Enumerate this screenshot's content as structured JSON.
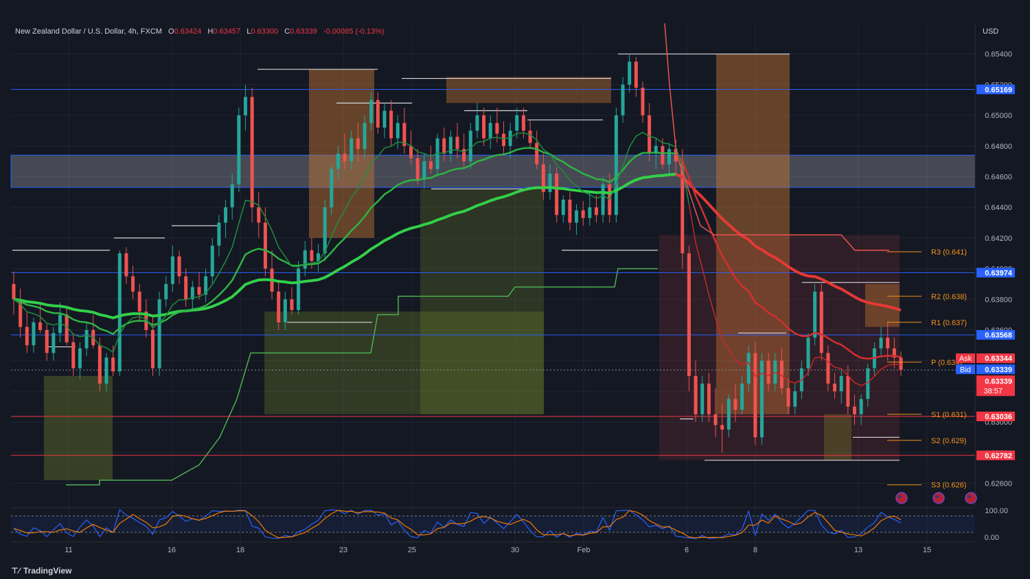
{
  "header": {
    "symbol": "New Zealand Dollar / U.S. Dollar, 4h, FXCM",
    "open_label": "O",
    "open": "0.63424",
    "high_label": "H",
    "high": "0.63457",
    "low_label": "L",
    "low": "0.63300",
    "close_label": "C",
    "close": "0.63339",
    "change": "-0.00085 (-0.13%)"
  },
  "currency": "USD",
  "branding": "TradingView",
  "colors": {
    "up": "#26a69a",
    "down": "#ef5350",
    "bg": "#141823",
    "hline_blue": "#2962ff",
    "hline_red": "#f23645",
    "pivot": "#f7931a"
  },
  "chart_data": {
    "type": "candlestick",
    "y_axis": {
      "ylim": [
        0.6245,
        0.656
      ],
      "ticks": [
        "0.62600",
        "0.62800",
        "0.63000",
        "0.63200",
        "0.63400",
        "0.63600",
        "0.63800",
        "0.64000",
        "0.64200",
        "0.64400",
        "0.64600",
        "0.64800",
        "0.65000",
        "0.65200",
        "0.65400"
      ]
    },
    "x_axis": {
      "tick_labels": [
        "11",
        "16",
        "18",
        "23",
        "25",
        "30",
        "Feb",
        "6",
        "8",
        "13",
        "15"
      ]
    },
    "price_tags": [
      {
        "value": "0.65169",
        "color": "#2962ff",
        "y": 0.65169
      },
      {
        "value": "0.63974",
        "color": "#2962ff",
        "y": 0.63974
      },
      {
        "value": "0.63568",
        "color": "#2962ff",
        "y": 0.63568
      },
      {
        "value": "0.63036",
        "color": "#f23645",
        "y": 0.63036
      },
      {
        "value": "0.62782",
        "color": "#f23645",
        "y": 0.62782
      }
    ],
    "ask": {
      "label": "Ask",
      "value": "0.63344",
      "y": 0.63344
    },
    "bid": {
      "label": "Bid",
      "value": "0.63339",
      "y": 0.63339
    },
    "last": {
      "value": "0.63339",
      "countdown": "38:57"
    },
    "pivots": [
      {
        "label": "R3 (0.641)",
        "y": 0.6411
      },
      {
        "label": "R2 (0.638)",
        "y": 0.6382
      },
      {
        "label": "R1 (0.637)",
        "y": 0.6365
      },
      {
        "label": "P (0.634)",
        "y": 0.6339
      },
      {
        "label": "S1 (0.631)",
        "y": 0.6305
      },
      {
        "label": "S2 (0.629)",
        "y": 0.6288
      },
      {
        "label": "S3 (0.626)",
        "y": 0.6259
      }
    ],
    "zone": {
      "low": 0.6453,
      "high": 0.6474
    },
    "candles": [
      [
        0.639,
        0.6398,
        0.637,
        0.638
      ],
      [
        0.638,
        0.6387,
        0.6355,
        0.6362
      ],
      [
        0.6362,
        0.6372,
        0.6345,
        0.635
      ],
      [
        0.635,
        0.6368,
        0.6345,
        0.6365
      ],
      [
        0.6365,
        0.6377,
        0.6358,
        0.636
      ],
      [
        0.636,
        0.6364,
        0.634,
        0.6345
      ],
      [
        0.6345,
        0.6362,
        0.634,
        0.6358
      ],
      [
        0.6358,
        0.6378,
        0.6352,
        0.637
      ],
      [
        0.637,
        0.6375,
        0.635,
        0.6352
      ],
      [
        0.6352,
        0.6358,
        0.633,
        0.6335
      ],
      [
        0.6335,
        0.6352,
        0.6328,
        0.6348
      ],
      [
        0.6348,
        0.6365,
        0.6343,
        0.636
      ],
      [
        0.636,
        0.637,
        0.6348,
        0.635
      ],
      [
        0.635,
        0.6355,
        0.632,
        0.6325
      ],
      [
        0.6325,
        0.6345,
        0.632,
        0.6342
      ],
      [
        0.6342,
        0.635,
        0.633,
        0.6333
      ],
      [
        0.6333,
        0.6412,
        0.633,
        0.641
      ],
      [
        0.641,
        0.6414,
        0.639,
        0.6395
      ],
      [
        0.6395,
        0.6402,
        0.638,
        0.6385
      ],
      [
        0.6385,
        0.639,
        0.6365,
        0.6372
      ],
      [
        0.6372,
        0.638,
        0.6355,
        0.636
      ],
      [
        0.636,
        0.637,
        0.633,
        0.6335
      ],
      [
        0.6335,
        0.6385,
        0.633,
        0.638
      ],
      [
        0.638,
        0.6395,
        0.6375,
        0.639
      ],
      [
        0.639,
        0.6415,
        0.6385,
        0.6408
      ],
      [
        0.6408,
        0.6412,
        0.639,
        0.6395
      ],
      [
        0.6395,
        0.64,
        0.6375,
        0.638
      ],
      [
        0.638,
        0.6392,
        0.6372,
        0.6388
      ],
      [
        0.6388,
        0.6398,
        0.638,
        0.6383
      ],
      [
        0.6383,
        0.64,
        0.6378,
        0.6395
      ],
      [
        0.6395,
        0.642,
        0.639,
        0.6415
      ],
      [
        0.6415,
        0.6435,
        0.6408,
        0.643
      ],
      [
        0.643,
        0.6445,
        0.642,
        0.644
      ],
      [
        0.644,
        0.6462,
        0.6432,
        0.6455
      ],
      [
        0.6455,
        0.6505,
        0.645,
        0.65
      ],
      [
        0.65,
        0.652,
        0.649,
        0.6512
      ],
      [
        0.6512,
        0.6518,
        0.643,
        0.644
      ],
      [
        0.644,
        0.645,
        0.642,
        0.643
      ],
      [
        0.643,
        0.644,
        0.6395,
        0.64
      ],
      [
        0.64,
        0.6412,
        0.638,
        0.6385
      ],
      [
        0.6385,
        0.6392,
        0.636,
        0.6365
      ],
      [
        0.6365,
        0.6385,
        0.636,
        0.638
      ],
      [
        0.638,
        0.6388,
        0.637,
        0.6373
      ],
      [
        0.6373,
        0.6405,
        0.637,
        0.64
      ],
      [
        0.64,
        0.6418,
        0.6395,
        0.6412
      ],
      [
        0.6412,
        0.642,
        0.64,
        0.6405
      ],
      [
        0.6405,
        0.6416,
        0.6398,
        0.641
      ],
      [
        0.641,
        0.6445,
        0.6405,
        0.644
      ],
      [
        0.644,
        0.6468,
        0.6435,
        0.6465
      ],
      [
        0.6465,
        0.648,
        0.6458,
        0.6475
      ],
      [
        0.6475,
        0.6488,
        0.6465,
        0.647
      ],
      [
        0.647,
        0.649,
        0.6465,
        0.6485
      ],
      [
        0.6485,
        0.6495,
        0.647,
        0.6478
      ],
      [
        0.6478,
        0.65,
        0.6472,
        0.6495
      ],
      [
        0.6495,
        0.6515,
        0.649,
        0.651
      ],
      [
        0.651,
        0.6515,
        0.6488,
        0.6492
      ],
      [
        0.6492,
        0.6508,
        0.6485,
        0.6503
      ],
      [
        0.6503,
        0.651,
        0.648,
        0.6485
      ],
      [
        0.6485,
        0.65,
        0.6478,
        0.6495
      ],
      [
        0.6495,
        0.6505,
        0.6475,
        0.648
      ],
      [
        0.648,
        0.649,
        0.6468,
        0.6472
      ],
      [
        0.6472,
        0.6478,
        0.6455,
        0.6458
      ],
      [
        0.6458,
        0.6475,
        0.6452,
        0.647
      ],
      [
        0.647,
        0.648,
        0.6462,
        0.6465
      ],
      [
        0.6465,
        0.6488,
        0.646,
        0.6485
      ],
      [
        0.6485,
        0.6492,
        0.647,
        0.6475
      ],
      [
        0.6475,
        0.649,
        0.647,
        0.6486
      ],
      [
        0.6486,
        0.6495,
        0.6472,
        0.6478
      ],
      [
        0.6478,
        0.6488,
        0.6466,
        0.647
      ],
      [
        0.647,
        0.6495,
        0.6465,
        0.649
      ],
      [
        0.649,
        0.6508,
        0.6485,
        0.65
      ],
      [
        0.65,
        0.6505,
        0.648,
        0.6485
      ],
      [
        0.6485,
        0.65,
        0.6478,
        0.6495
      ],
      [
        0.6495,
        0.6505,
        0.6482,
        0.6488
      ],
      [
        0.6488,
        0.6496,
        0.6475,
        0.648
      ],
      [
        0.648,
        0.6495,
        0.6472,
        0.649
      ],
      [
        0.649,
        0.6505,
        0.6485,
        0.65
      ],
      [
        0.65,
        0.6505,
        0.6485,
        0.649
      ],
      [
        0.649,
        0.6497,
        0.6478,
        0.6482
      ],
      [
        0.6482,
        0.649,
        0.6465,
        0.6468
      ],
      [
        0.6468,
        0.6475,
        0.6445,
        0.645
      ],
      [
        0.645,
        0.6468,
        0.6445,
        0.6462
      ],
      [
        0.6462,
        0.6466,
        0.643,
        0.6435
      ],
      [
        0.6435,
        0.6448,
        0.643,
        0.6445
      ],
      [
        0.6445,
        0.645,
        0.6425,
        0.643
      ],
      [
        0.643,
        0.6442,
        0.6422,
        0.6438
      ],
      [
        0.6438,
        0.6444,
        0.6428,
        0.6433
      ],
      [
        0.6433,
        0.645,
        0.6428,
        0.644
      ],
      [
        0.644,
        0.6448,
        0.643,
        0.6435
      ],
      [
        0.6435,
        0.646,
        0.643,
        0.6455
      ],
      [
        0.6455,
        0.6462,
        0.643,
        0.6435
      ],
      [
        0.6435,
        0.6505,
        0.643,
        0.65
      ],
      [
        0.65,
        0.6525,
        0.6495,
        0.652
      ],
      [
        0.652,
        0.654,
        0.6515,
        0.6535
      ],
      [
        0.6535,
        0.6538,
        0.6512,
        0.6518
      ],
      [
        0.6518,
        0.6522,
        0.6495,
        0.65
      ],
      [
        0.65,
        0.6508,
        0.647,
        0.6475
      ],
      [
        0.6475,
        0.6485,
        0.6465,
        0.648
      ],
      [
        0.648,
        0.6485,
        0.6465,
        0.6468
      ],
      [
        0.6468,
        0.6482,
        0.6462,
        0.6478
      ],
      [
        0.6478,
        0.6484,
        0.6462,
        0.647
      ],
      [
        0.647,
        0.6478,
        0.64,
        0.641
      ],
      [
        0.641,
        0.6415,
        0.632,
        0.633
      ],
      [
        0.633,
        0.634,
        0.63,
        0.6305
      ],
      [
        0.6305,
        0.633,
        0.63,
        0.6325
      ],
      [
        0.6325,
        0.6332,
        0.63,
        0.6305
      ],
      [
        0.6305,
        0.6322,
        0.629,
        0.6298
      ],
      [
        0.6298,
        0.6312,
        0.628,
        0.6295
      ],
      [
        0.6295,
        0.6318,
        0.629,
        0.6315
      ],
      [
        0.6315,
        0.6325,
        0.63,
        0.6308
      ],
      [
        0.6308,
        0.633,
        0.6305,
        0.6325
      ],
      [
        0.6325,
        0.635,
        0.632,
        0.6345
      ],
      [
        0.6345,
        0.6352,
        0.6285,
        0.629
      ],
      [
        0.629,
        0.6345,
        0.6285,
        0.634
      ],
      [
        0.634,
        0.6345,
        0.632,
        0.6325
      ],
      [
        0.6325,
        0.6345,
        0.632,
        0.634
      ],
      [
        0.634,
        0.6348,
        0.6318,
        0.6322
      ],
      [
        0.6322,
        0.6328,
        0.6305,
        0.631
      ],
      [
        0.631,
        0.6325,
        0.6305,
        0.632
      ],
      [
        0.632,
        0.634,
        0.6315,
        0.6335
      ],
      [
        0.6335,
        0.6358,
        0.633,
        0.6355
      ],
      [
        0.6355,
        0.639,
        0.635,
        0.6385
      ],
      [
        0.6385,
        0.639,
        0.634,
        0.6345
      ],
      [
        0.6345,
        0.635,
        0.632,
        0.6325
      ],
      [
        0.6325,
        0.6332,
        0.6315,
        0.632
      ],
      [
        0.632,
        0.6335,
        0.6312,
        0.633
      ],
      [
        0.633,
        0.6337,
        0.6305,
        0.631
      ],
      [
        0.631,
        0.6318,
        0.6298,
        0.6305
      ],
      [
        0.6305,
        0.6318,
        0.6298,
        0.6315
      ],
      [
        0.6315,
        0.6338,
        0.631,
        0.6335
      ],
      [
        0.6335,
        0.6352,
        0.633,
        0.6348
      ],
      [
        0.6348,
        0.6362,
        0.6342,
        0.6355
      ],
      [
        0.6355,
        0.6365,
        0.634,
        0.6348
      ],
      [
        0.6348,
        0.6355,
        0.6335,
        0.6342
      ],
      [
        0.6342,
        0.6346,
        0.633,
        0.6334
      ]
    ],
    "stochastic": {
      "upper": "100.00",
      "lower": "0.00"
    }
  }
}
